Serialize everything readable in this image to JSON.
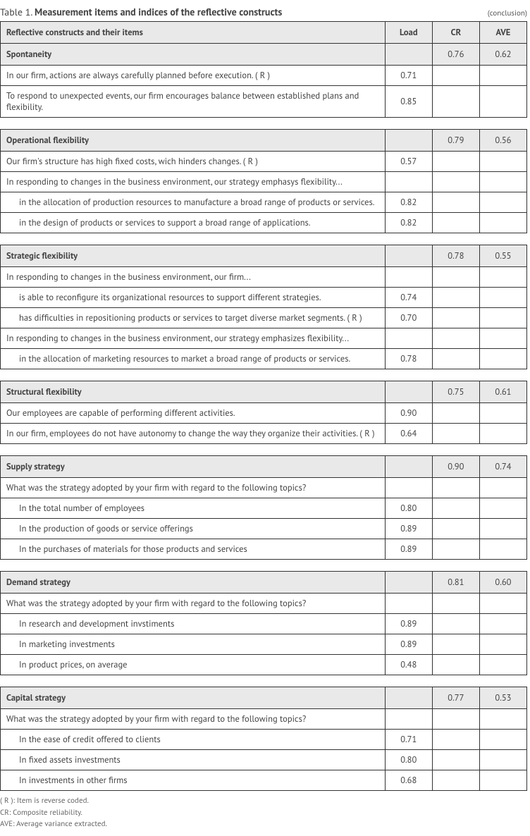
{
  "title_prefix": "Table 1.",
  "title_main": "Measurement items and indices of the reflective constructs",
  "conclusion_tag": "(conclusion)",
  "columns": {
    "items": "Reflective constructs and their items",
    "load": "Load",
    "cr": "CR",
    "ave": "AVE"
  },
  "sections": [
    {
      "name": "Spontaneity",
      "cr": "0.76",
      "ave": "0.62",
      "rows": [
        {
          "text": "In our firm, actions are always carefully planned before execution. ( R )",
          "load": "0.71"
        },
        {
          "text": "To respond to unexpected events, our firm encourages balance between established plans and flexibility.",
          "load": "0.85"
        }
      ]
    },
    {
      "name": "Operational flexibility",
      "cr": "0.79",
      "ave": "0.56",
      "rows": [
        {
          "text": "Our firm's structure has high fixed costs, wich hinders changes. ( R )",
          "load": "0.57"
        },
        {
          "text": "In responding to changes in the business environment, our strategy emphasys flexibility...",
          "load": ""
        },
        {
          "text": "in the allocation of production resources to manufacture a broad range of products or services.",
          "load": "0.82",
          "sub": true
        },
        {
          "text": "in the design of products or services to support a broad range of applications.",
          "load": "0.82",
          "sub": true
        }
      ]
    },
    {
      "name": "Strategic flexibility",
      "cr": "0.78",
      "ave": "0.55",
      "rows": [
        {
          "text": "In responding to changes in the business environment, our firm...",
          "load": ""
        },
        {
          "text": "is able to reconfigure its organizational resources to support different strategies.",
          "load": "0.74",
          "sub": true
        },
        {
          "text": "has difficulties in repositioning products or services to target diverse market segments. ( R )",
          "load": "0.70",
          "sub": true
        },
        {
          "text": "In responding to changes in the business environment, our strategy emphasizes flexibility...",
          "load": ""
        },
        {
          "text": "in the allocation of marketing resources to market a broad range of products or services.",
          "load": "0.78",
          "sub": true
        }
      ]
    },
    {
      "name": "Structural flexibility",
      "cr": "0.75",
      "ave": "0.61",
      "rows": [
        {
          "text": "Our employees are capable of performing different activities.",
          "load": "0.90"
        },
        {
          "text": "In our firm, employees do not have autonomy to change the way they organize their activities. ( R )",
          "load": "0.64"
        }
      ]
    },
    {
      "name": "Supply strategy",
      "cr": "0.90",
      "ave": "0.74",
      "rows": [
        {
          "text": "What was the strategy adopted by your firm with regard to the following topics?",
          "load": ""
        },
        {
          "text": "In the total number of employees",
          "load": "0.80",
          "sub": true
        },
        {
          "text": "In the production of goods or service offerings",
          "load": "0.89",
          "sub": true
        },
        {
          "text": "In the purchases of materials for those products and services",
          "load": "0.89",
          "sub": true
        }
      ]
    },
    {
      "name": "Demand strategy",
      "cr": "0.81",
      "ave": "0.60",
      "rows": [
        {
          "text": "What was the strategy adopted by your firm with regard to the following topics?",
          "load": ""
        },
        {
          "text": "In research and development invstiments",
          "load": "0.89",
          "sub": true
        },
        {
          "text": "In marketing investments",
          "load": "0.89",
          "sub": true
        },
        {
          "text": "In product prices, on average",
          "load": "0.48",
          "sub": true
        }
      ]
    },
    {
      "name": "Capital strategy",
      "cr": "0.77",
      "ave": "0.53",
      "rows": [
        {
          "text": "What was the strategy adopted by your firm with regard to the following topics?",
          "load": ""
        },
        {
          "text": "In the ease of credit offered to clients",
          "load": "0.71",
          "sub": true
        },
        {
          "text": "In fixed assets investments",
          "load": "0.80",
          "sub": true
        },
        {
          "text": "In investments in other firms",
          "load": "0.68",
          "sub": true
        }
      ]
    }
  ],
  "footnotes": [
    "( R ): Item is reverse coded.",
    "CR: Composite reliability.",
    "AVE: Average variance extracted."
  ]
}
